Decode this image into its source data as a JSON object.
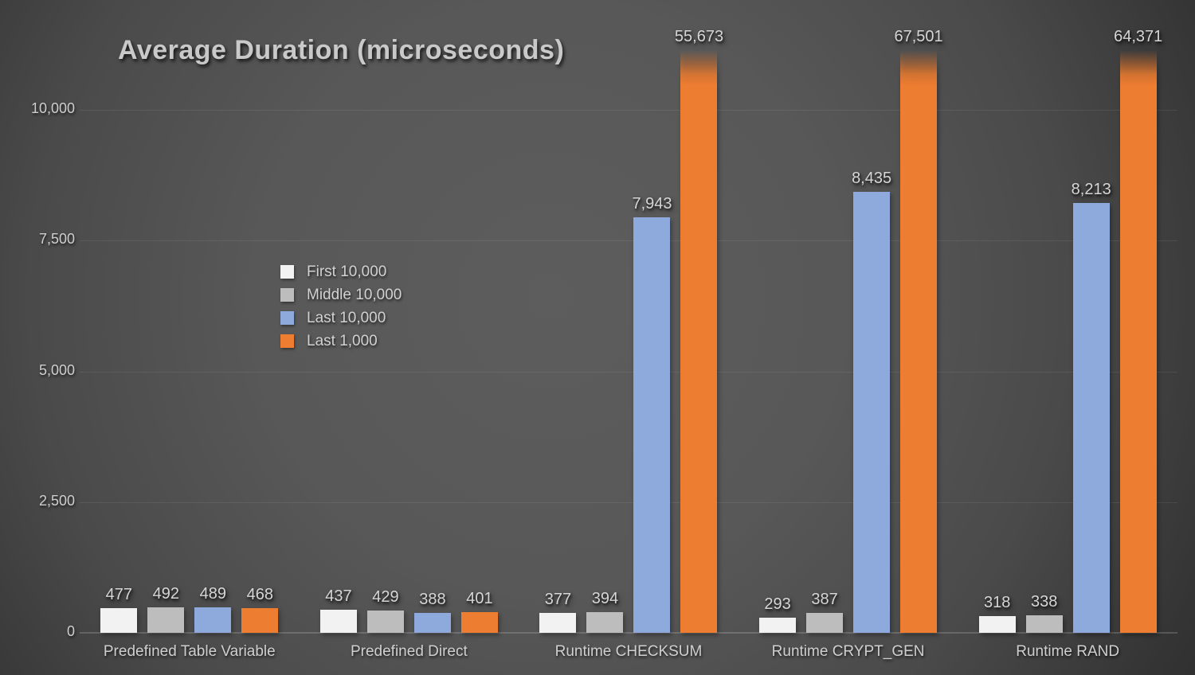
{
  "title": "Average Duration (microseconds)",
  "colors": {
    "background_center": "#5d5d5d",
    "background_edge": "#282828",
    "text": "#cfcfcf",
    "gridline": "rgba(255,255,255,0.08)"
  },
  "chart_data": {
    "type": "bar",
    "title": "Average Duration (microseconds)",
    "categories": [
      "Predefined Table Variable",
      "Predefined Direct",
      "Runtime CHECKSUM",
      "Runtime CRYPT_GEN",
      "Runtime RAND"
    ],
    "series": [
      {
        "name": "First 10,000",
        "color": "#f2f2f2",
        "values": [
          477,
          437,
          377,
          293,
          318
        ]
      },
      {
        "name": "Middle 10,000",
        "color": "#bdbdbd",
        "values": [
          492,
          429,
          394,
          387,
          338
        ]
      },
      {
        "name": "Last 10,000",
        "color": "#8ea9db",
        "values": [
          489,
          388,
          7943,
          8435,
          8213
        ]
      },
      {
        "name": "Last 1,000",
        "color": "#ed7d31",
        "values": [
          468,
          401,
          55673,
          67501,
          64371
        ]
      }
    ],
    "xlabel": "",
    "ylabel": "",
    "yticks": [
      0,
      2500,
      5000,
      7500,
      10000
    ],
    "ylim": [
      0,
      10000
    ],
    "grid": true,
    "legend_position": "inside-left",
    "value_labels_shown": true,
    "clipped_bars_fade_out_at_top": true
  }
}
